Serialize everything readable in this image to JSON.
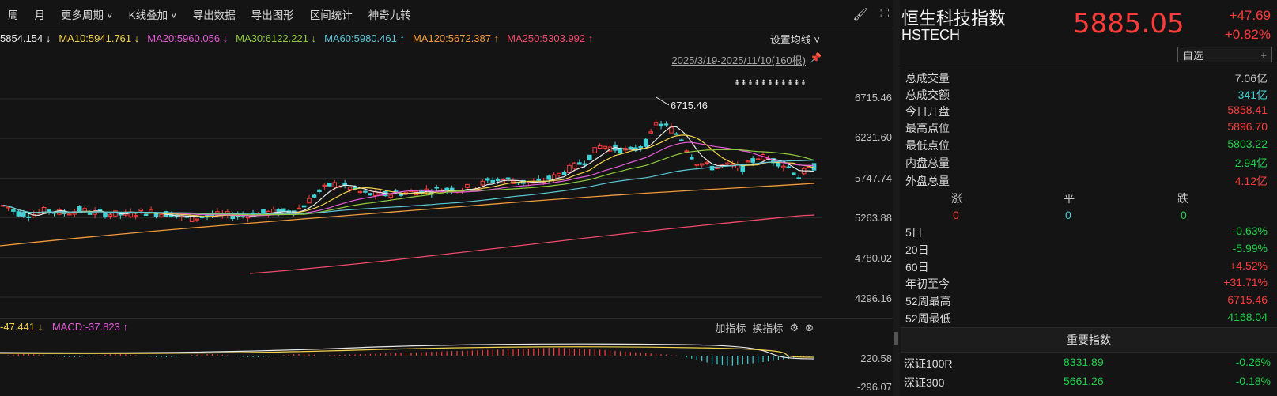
{
  "toolbar": {
    "items": [
      "周",
      "月",
      "更多周期 ˅",
      "K线叠加 ˅",
      "导出数据",
      "导出图形",
      "区间统计",
      "神奇九转"
    ]
  },
  "ma": [
    {
      "text": "5854.154 ↓",
      "color": "#e8e8e8"
    },
    {
      "text": "MA10:5941.761 ↓",
      "color": "#f2d24b"
    },
    {
      "text": "MA20:5960.056 ↓",
      "color": "#e45ad8"
    },
    {
      "text": "MA30:6122.221 ↓",
      "color": "#8ec93d"
    },
    {
      "text": "MA60:5980.461 ↑",
      "color": "#5bc8d8"
    },
    {
      "text": "MA120:5672.387 ↑",
      "color": "#f29a3c"
    },
    {
      "text": "MA250:5303.992 ↑",
      "color": "#f04a6a"
    }
  ],
  "ma_settings": "设置均线 ˅",
  "date_range": "2025/3/19-2025/11/10(160根)",
  "nine_marks": "⇞⇞⇞⇞⇞⇞⇞⇞⇞⇞⇞",
  "high_label": "6715.46",
  "price_axis": [
    "6715.46",
    "6231.60",
    "5747.74",
    "5263.88",
    "4780.02",
    "4296.16"
  ],
  "macd": {
    "dif": "-47.441 ↓",
    "macd_val": "MACD:-37.823 ↑",
    "add_indicator": "加指标",
    "change_indicator": "换指标",
    "axis_top": "220.58",
    "axis_bottom": "-296.07"
  },
  "chart_data": {
    "type": "candlestick",
    "title": "",
    "ylim": [
      4296.16,
      6715.46
    ],
    "note": "Daily K-line, 160 bars visible with MA5/10/20/30/60/120/250 overlays and MACD subchart"
  },
  "side": {
    "name": "恒生科技指数",
    "code": "HSTECH",
    "price": "5885.05",
    "change": "+47.69",
    "change_pct": "+0.82%",
    "watch_btn": "自选",
    "watch_plus": "+",
    "stats": [
      {
        "label": "总成交量",
        "value": "7.06亿",
        "cls": ""
      },
      {
        "label": "总成交额",
        "value": "341亿",
        "cls": "cyan"
      },
      {
        "label": "今日开盘",
        "value": "5858.41",
        "cls": "red"
      },
      {
        "label": "最高点位",
        "value": "5896.70",
        "cls": "red"
      },
      {
        "label": "最低点位",
        "value": "5803.22",
        "cls": "green"
      },
      {
        "label": "内盘总量",
        "value": "2.94亿",
        "cls": "green"
      },
      {
        "label": "外盘总量",
        "value": "4.12亿",
        "cls": "red"
      }
    ],
    "updown": {
      "up_label": "涨",
      "flat_label": "平",
      "down_label": "跌",
      "up": "0",
      "flat": "0",
      "down": "0"
    },
    "periods": [
      {
        "label": "5日",
        "value": "-0.63%",
        "cls": "green"
      },
      {
        "label": "20日",
        "value": "-5.99%",
        "cls": "green"
      },
      {
        "label": "60日",
        "value": "+4.52%",
        "cls": "red"
      },
      {
        "label": "年初至今",
        "value": "+31.71%",
        "cls": "red"
      },
      {
        "label": "52周最高",
        "value": "6715.46",
        "cls": "red"
      },
      {
        "label": "52周最低",
        "value": "4168.04",
        "cls": "green"
      }
    ],
    "section_title": "重要指数",
    "indices": [
      {
        "name": "深证100R",
        "price": "8331.89",
        "change": "-0.26%",
        "cls": "green"
      },
      {
        "name": "深证300",
        "price": "5661.26",
        "change": "-0.18%",
        "cls": "green"
      }
    ]
  }
}
